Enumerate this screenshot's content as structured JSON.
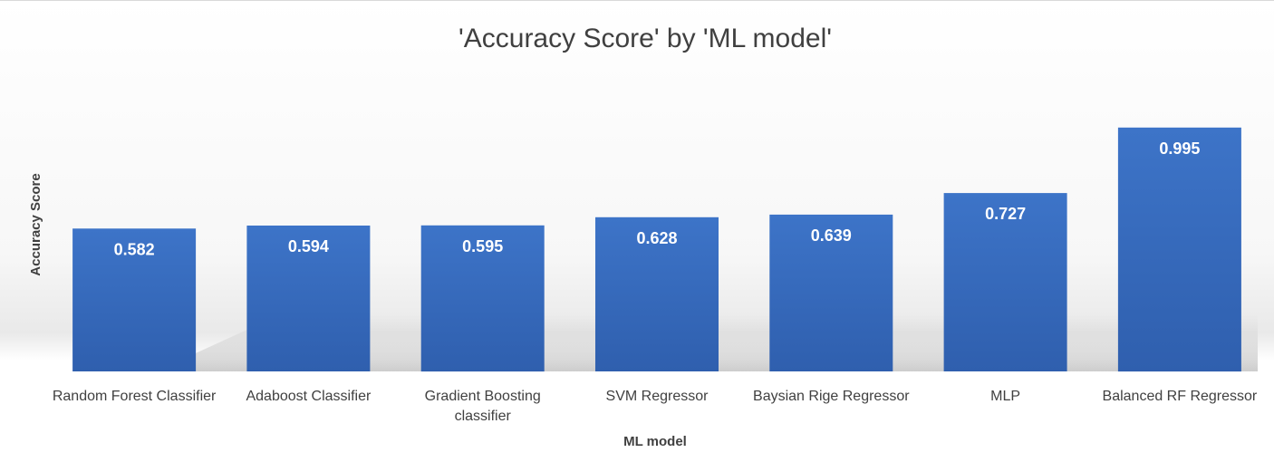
{
  "chart_data": {
    "type": "bar",
    "title": "'Accuracy Score' by 'ML model'",
    "xlabel": "ML model",
    "ylabel": "Accuracy Score",
    "categories": [
      "Random Forest Classifier",
      "Adaboost Classifier",
      "Gradient Boosting classifier",
      "SVM Regressor",
      "Baysian Rige Regressor",
      "MLP",
      "Balanced RF Regressor"
    ],
    "values": [
      0.582,
      0.594,
      0.595,
      0.628,
      0.639,
      0.727,
      0.995
    ],
    "data_labels": [
      "0.582",
      "0.594",
      "0.595",
      "0.628",
      "0.639",
      "0.727",
      "0.995"
    ],
    "ylim": [
      0,
      1.0
    ],
    "grid": false,
    "legend": "none",
    "bar_color": "#3a6fc4"
  }
}
